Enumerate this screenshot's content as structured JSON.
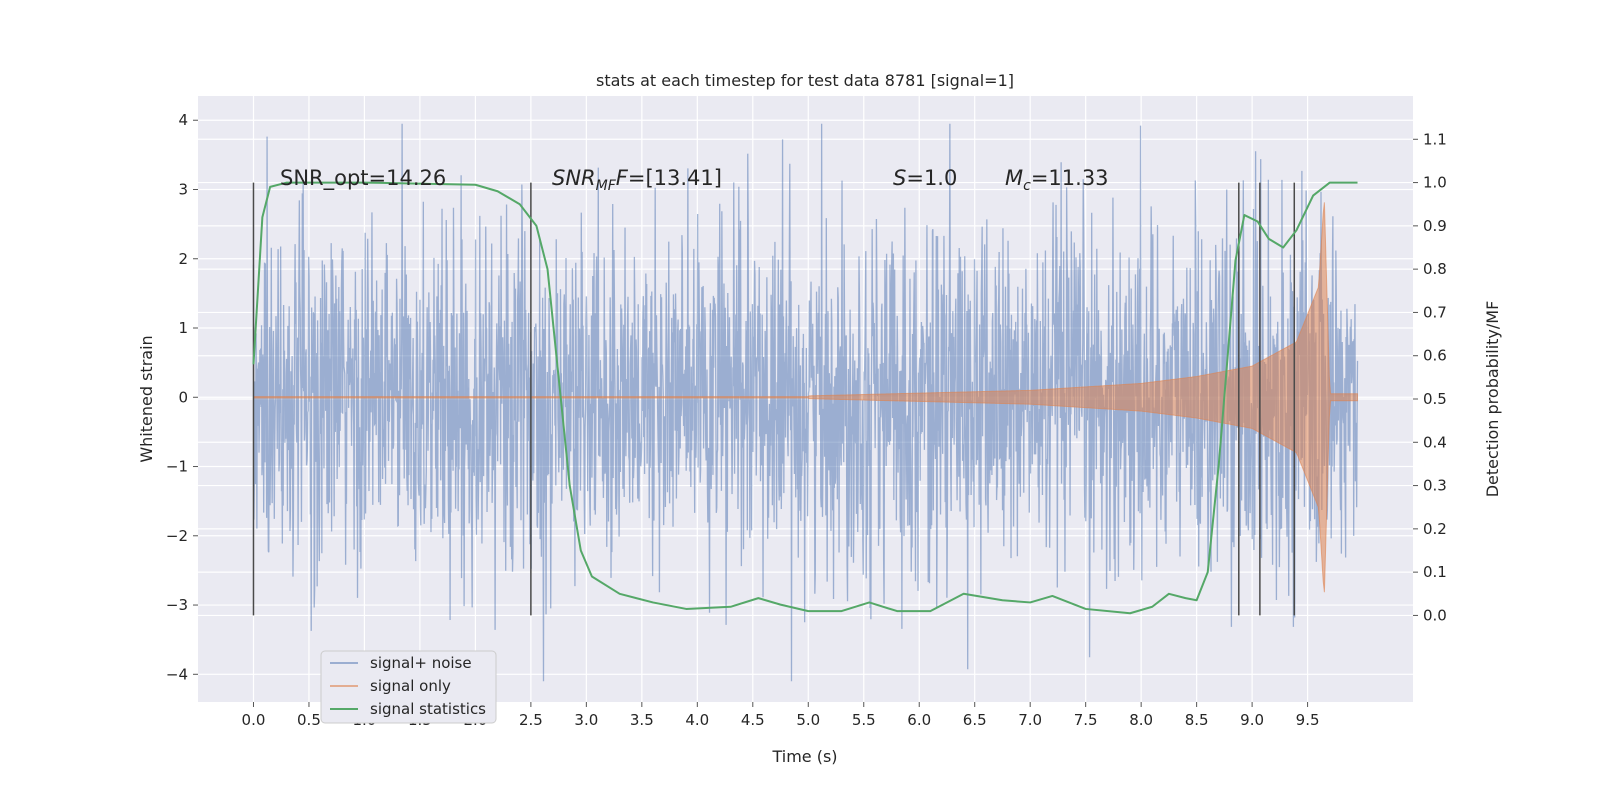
{
  "chart_data": {
    "type": "line",
    "title": "stats at each timestep for test data 8781 [signal=1]",
    "xlabel": "Time (s)",
    "ylabel_left": "Whitened strain",
    "ylabel_right": "Detection probability/MF",
    "xlim": [
      -0.5,
      10.45
    ],
    "ylim_left": [
      -4.4,
      4.35
    ],
    "ylim_right": [
      -0.2,
      1.2
    ],
    "xticks": [
      "0.0",
      "0.5",
      "1.0",
      "1.5",
      "2.0",
      "2.5",
      "3.0",
      "3.5",
      "4.0",
      "4.5",
      "5.0",
      "5.5",
      "6.0",
      "6.5",
      "7.0",
      "7.5",
      "8.0",
      "8.5",
      "9.0",
      "9.5"
    ],
    "yticks_left": [
      "4",
      "3",
      "2",
      "1",
      "0",
      "−1",
      "−2",
      "−3",
      "−4"
    ],
    "yticks_right": [
      "1.1",
      "1.0",
      "0.9",
      "0.8",
      "0.7",
      "0.6",
      "0.5",
      "0.4",
      "0.3",
      "0.2",
      "0.1",
      "0.0"
    ],
    "grid": true,
    "legend_position": "lower-left",
    "annotations": {
      "snr_opt": "SNR_opt=14.26",
      "snr_mf_var": "SNR",
      "snr_mf_sub": "MF",
      "snr_mf_val": "=[13.41]",
      "s_var": "S",
      "s_val": "=1.0",
      "mc_var": "M",
      "mc_sub": "c",
      "mc_val": "=11.33"
    },
    "vertical_markers": [
      0.0,
      2.5,
      8.88,
      9.07,
      9.38
    ],
    "series": [
      {
        "name": "signal+ noise",
        "color": "#4c72b0",
        "axis": "left",
        "t_range": [
          0.0,
          9.95
        ],
        "noise_std": 1.25,
        "peak_range": [
          -4.1,
          3.95
        ]
      },
      {
        "name": "signal only",
        "color": "#dd8452",
        "axis": "left",
        "t_range": [
          0.0,
          9.95
        ],
        "merger_time": 9.65,
        "amplitude_envelope": [
          {
            "t": 5.0,
            "a": 0.02
          },
          {
            "t": 6.0,
            "a": 0.06
          },
          {
            "t": 7.0,
            "a": 0.1
          },
          {
            "t": 8.0,
            "a": 0.2
          },
          {
            "t": 8.5,
            "a": 0.3
          },
          {
            "t": 9.0,
            "a": 0.45
          },
          {
            "t": 9.4,
            "a": 0.8
          },
          {
            "t": 9.6,
            "a": 1.6
          },
          {
            "t": 9.65,
            "a": 2.9
          },
          {
            "t": 9.7,
            "a": 0.05
          }
        ]
      },
      {
        "name": "signal statistics",
        "color": "#55a868",
        "axis": "right",
        "points": [
          {
            "t": 0.0,
            "p": 0.58
          },
          {
            "t": 0.08,
            "p": 0.92
          },
          {
            "t": 0.15,
            "p": 0.99
          },
          {
            "t": 0.3,
            "p": 1.0
          },
          {
            "t": 1.0,
            "p": 1.0
          },
          {
            "t": 2.0,
            "p": 0.995
          },
          {
            "t": 2.2,
            "p": 0.98
          },
          {
            "t": 2.4,
            "p": 0.95
          },
          {
            "t": 2.55,
            "p": 0.9
          },
          {
            "t": 2.65,
            "p": 0.8
          },
          {
            "t": 2.75,
            "p": 0.55
          },
          {
            "t": 2.85,
            "p": 0.3
          },
          {
            "t": 2.95,
            "p": 0.15
          },
          {
            "t": 3.05,
            "p": 0.09
          },
          {
            "t": 3.3,
            "p": 0.05
          },
          {
            "t": 3.6,
            "p": 0.03
          },
          {
            "t": 3.9,
            "p": 0.015
          },
          {
            "t": 4.3,
            "p": 0.02
          },
          {
            "t": 4.55,
            "p": 0.04
          },
          {
            "t": 4.75,
            "p": 0.025
          },
          {
            "t": 5.0,
            "p": 0.01
          },
          {
            "t": 5.3,
            "p": 0.01
          },
          {
            "t": 5.55,
            "p": 0.03
          },
          {
            "t": 5.8,
            "p": 0.01
          },
          {
            "t": 6.1,
            "p": 0.01
          },
          {
            "t": 6.4,
            "p": 0.05
          },
          {
            "t": 6.75,
            "p": 0.035
          },
          {
            "t": 7.0,
            "p": 0.03
          },
          {
            "t": 7.2,
            "p": 0.045
          },
          {
            "t": 7.5,
            "p": 0.015
          },
          {
            "t": 7.9,
            "p": 0.005
          },
          {
            "t": 8.1,
            "p": 0.02
          },
          {
            "t": 8.25,
            "p": 0.05
          },
          {
            "t": 8.4,
            "p": 0.04
          },
          {
            "t": 8.5,
            "p": 0.035
          },
          {
            "t": 8.6,
            "p": 0.1
          },
          {
            "t": 8.7,
            "p": 0.35
          },
          {
            "t": 8.78,
            "p": 0.6
          },
          {
            "t": 8.85,
            "p": 0.82
          },
          {
            "t": 8.93,
            "p": 0.925
          },
          {
            "t": 9.05,
            "p": 0.91
          },
          {
            "t": 9.15,
            "p": 0.87
          },
          {
            "t": 9.28,
            "p": 0.85
          },
          {
            "t": 9.4,
            "p": 0.89
          },
          {
            "t": 9.55,
            "p": 0.97
          },
          {
            "t": 9.7,
            "p": 1.0
          },
          {
            "t": 9.95,
            "p": 1.0
          }
        ]
      }
    ]
  }
}
